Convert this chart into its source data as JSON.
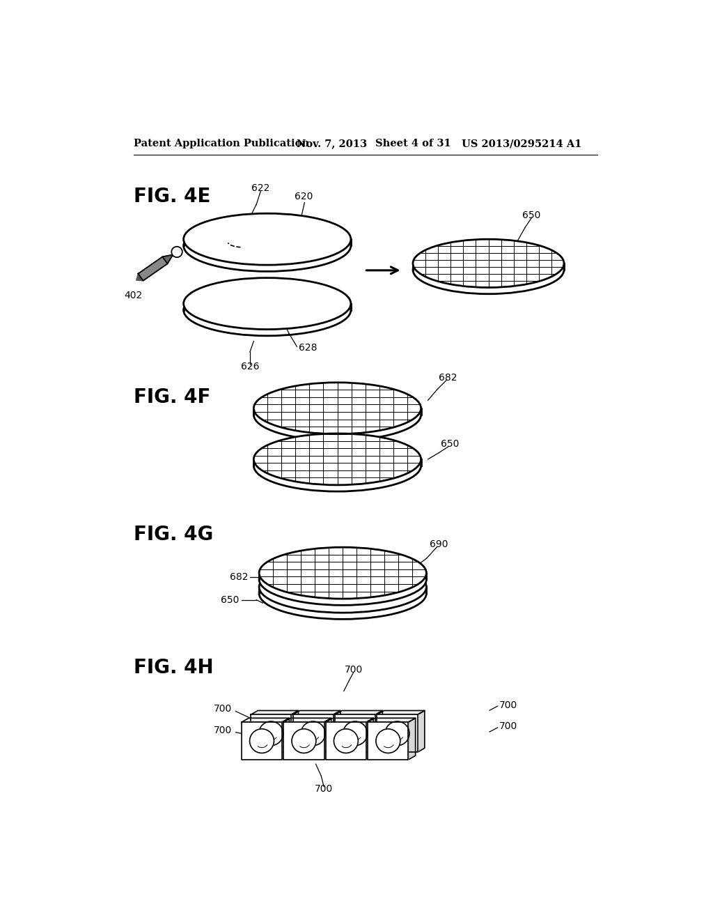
{
  "bg_color": "#ffffff",
  "header_text": "Patent Application Publication",
  "header_date": "Nov. 7, 2013",
  "header_sheet": "Sheet 4 of 31",
  "header_patent": "US 2013/0295214 A1",
  "fig4e_label": "FIG. 4E",
  "fig4f_label": "FIG. 4F",
  "fig4g_label": "FIG. 4G",
  "fig4h_label": "FIG. 4H"
}
